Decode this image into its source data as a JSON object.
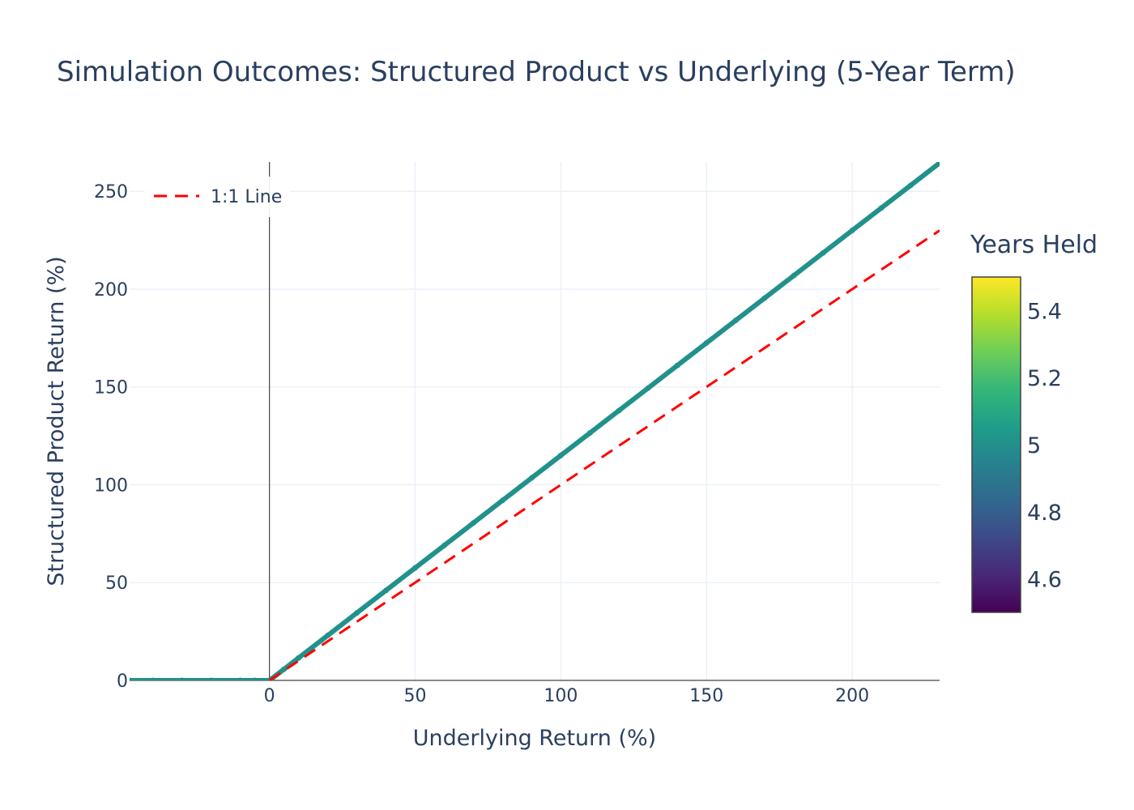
{
  "chart_data": {
    "type": "scatter",
    "title": "Simulation Outcomes: Structured Product vs Underlying (5-Year Term)",
    "xlabel": "Underlying Return (%)",
    "ylabel": "Structured Product Return (%)",
    "xlim": [
      -48,
      230
    ],
    "ylim": [
      0,
      265
    ],
    "xticks": [
      0,
      50,
      100,
      150,
      200
    ],
    "yticks": [
      0,
      50,
      100,
      150,
      200,
      250
    ],
    "grid": true,
    "legend_position": "top-left",
    "series": [
      {
        "kind": "scatter",
        "color_value": 5,
        "color": "#21918c",
        "description_points": "payoff: 0 for x<=0, 1.15*x for x>0",
        "x": [
          -48,
          -40,
          -30,
          -20,
          -10,
          -5,
          0,
          5,
          10,
          20,
          30,
          40,
          50,
          60,
          70,
          80,
          90,
          100,
          110,
          120,
          130,
          140,
          150,
          160,
          170,
          180,
          190,
          200,
          210,
          220,
          230
        ],
        "y": [
          0,
          0,
          0,
          0,
          0,
          0,
          0,
          5.75,
          11.5,
          23,
          34.5,
          46,
          57.5,
          69,
          80.5,
          92,
          103.5,
          115,
          126.5,
          138,
          149.5,
          161,
          172.5,
          184,
          195.5,
          207,
          218.5,
          230,
          241.5,
          253,
          264.5
        ]
      },
      {
        "name": "1:1 Line",
        "kind": "line",
        "dash": "dash",
        "color": "#ff0000",
        "x": [
          0,
          230
        ],
        "y": [
          0,
          230
        ]
      }
    ],
    "colorbar": {
      "title": "Years Held",
      "range": [
        4.5,
        5.5
      ],
      "ticks": [
        4.6,
        4.8,
        5,
        5.2,
        5.4
      ],
      "colorscale": [
        "#440154",
        "#482878",
        "#3e4989",
        "#31688e",
        "#26828e",
        "#1f9e89",
        "#35b779",
        "#6ece58",
        "#b5de2b",
        "#fde725"
      ]
    }
  }
}
